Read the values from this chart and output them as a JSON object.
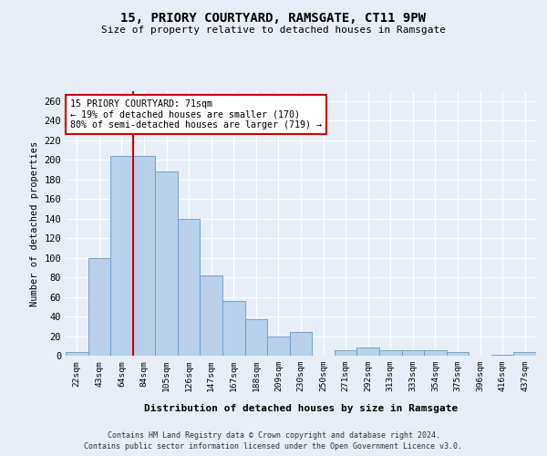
{
  "title": "15, PRIORY COURTYARD, RAMSGATE, CT11 9PW",
  "subtitle": "Size of property relative to detached houses in Ramsgate",
  "xlabel": "Distribution of detached houses by size in Ramsgate",
  "ylabel": "Number of detached properties",
  "categories": [
    "22sqm",
    "43sqm",
    "64sqm",
    "84sqm",
    "105sqm",
    "126sqm",
    "147sqm",
    "167sqm",
    "188sqm",
    "209sqm",
    "230sqm",
    "250sqm",
    "271sqm",
    "292sqm",
    "313sqm",
    "333sqm",
    "354sqm",
    "375sqm",
    "396sqm",
    "416sqm",
    "437sqm"
  ],
  "values": [
    4,
    100,
    204,
    204,
    188,
    140,
    82,
    56,
    37,
    20,
    24,
    0,
    6,
    8,
    6,
    6,
    6,
    4,
    0,
    1,
    4
  ],
  "bar_color": "#b8d0ea",
  "bar_edge_color": "#6699cc",
  "property_line_x": 2.5,
  "annotation_text": "15 PRIORY COURTYARD: 71sqm\n← 19% of detached houses are smaller (170)\n80% of semi-detached houses are larger (719) →",
  "annotation_box_color": "#ffffff",
  "annotation_box_edge_color": "#cc0000",
  "vline_color": "#cc0000",
  "background_color": "#e8eef8",
  "grid_color": "#ffffff",
  "ylim": [
    0,
    270
  ],
  "yticks": [
    0,
    20,
    40,
    60,
    80,
    100,
    120,
    140,
    160,
    180,
    200,
    220,
    240,
    260
  ],
  "footer_line1": "Contains HM Land Registry data © Crown copyright and database right 2024.",
  "footer_line2": "Contains public sector information licensed under the Open Government Licence v3.0."
}
